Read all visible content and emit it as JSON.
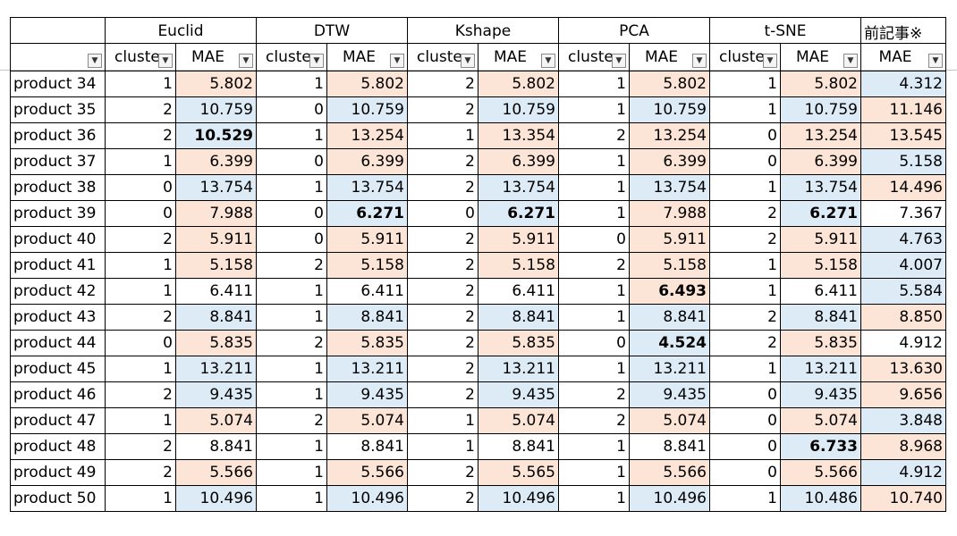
{
  "groups": [
    "Euclid",
    "DTW",
    "Kshape",
    "PCA",
    "t-SNE",
    "前記事※"
  ],
  "subheaders": {
    "cluster": "cluste",
    "mae": "MAE"
  },
  "rows": [
    {
      "name": "product 34",
      "cols": [
        [
          1,
          "5.802",
          "p",
          false
        ],
        [
          1,
          "5.802",
          "p",
          false
        ],
        [
          2,
          "5.802",
          "p",
          false
        ],
        [
          1,
          "5.802",
          "p",
          false
        ],
        [
          1,
          "5.802",
          "p",
          false
        ]
      ],
      "prev": [
        "4.312",
        "b"
      ]
    },
    {
      "name": "product 35",
      "cols": [
        [
          2,
          "10.759",
          "b",
          false
        ],
        [
          0,
          "10.759",
          "b",
          false
        ],
        [
          2,
          "10.759",
          "b",
          false
        ],
        [
          1,
          "10.759",
          "b",
          false
        ],
        [
          1,
          "10.759",
          "b",
          false
        ]
      ],
      "prev": [
        "11.146",
        "p"
      ]
    },
    {
      "name": "product 36",
      "cols": [
        [
          2,
          "10.529",
          "b",
          true
        ],
        [
          1,
          "13.254",
          "p",
          false
        ],
        [
          1,
          "13.354",
          "p",
          false
        ],
        [
          2,
          "13.254",
          "p",
          false
        ],
        [
          0,
          "13.254",
          "p",
          false
        ]
      ],
      "prev": [
        "13.545",
        "p"
      ]
    },
    {
      "name": "product 37",
      "cols": [
        [
          1,
          "6.399",
          "p",
          false
        ],
        [
          0,
          "6.399",
          "p",
          false
        ],
        [
          2,
          "6.399",
          "p",
          false
        ],
        [
          1,
          "6.399",
          "p",
          false
        ],
        [
          0,
          "6.399",
          "p",
          false
        ]
      ],
      "prev": [
        "5.158",
        "b"
      ]
    },
    {
      "name": "product 38",
      "cols": [
        [
          0,
          "13.754",
          "b",
          false
        ],
        [
          1,
          "13.754",
          "b",
          false
        ],
        [
          2,
          "13.754",
          "b",
          false
        ],
        [
          1,
          "13.754",
          "b",
          false
        ],
        [
          1,
          "13.754",
          "b",
          false
        ]
      ],
      "prev": [
        "14.496",
        "p"
      ]
    },
    {
      "name": "product 39",
      "cols": [
        [
          0,
          "7.988",
          "p",
          false
        ],
        [
          0,
          "6.271",
          "b",
          true
        ],
        [
          0,
          "6.271",
          "b",
          true
        ],
        [
          1,
          "7.988",
          "p",
          false
        ],
        [
          2,
          "6.271",
          "b",
          true
        ]
      ],
      "prev": [
        "7.367",
        "w"
      ]
    },
    {
      "name": "product 40",
      "cols": [
        [
          2,
          "5.911",
          "p",
          false
        ],
        [
          0,
          "5.911",
          "p",
          false
        ],
        [
          2,
          "5.911",
          "p",
          false
        ],
        [
          0,
          "5.911",
          "p",
          false
        ],
        [
          2,
          "5.911",
          "p",
          false
        ]
      ],
      "prev": [
        "4.763",
        "b"
      ]
    },
    {
      "name": "product 41",
      "cols": [
        [
          1,
          "5.158",
          "p",
          false
        ],
        [
          2,
          "5.158",
          "p",
          false
        ],
        [
          2,
          "5.158",
          "p",
          false
        ],
        [
          2,
          "5.158",
          "p",
          false
        ],
        [
          1,
          "5.158",
          "p",
          false
        ]
      ],
      "prev": [
        "4.007",
        "b"
      ]
    },
    {
      "name": "product 42",
      "cols": [
        [
          1,
          "6.411",
          "w",
          false
        ],
        [
          1,
          "6.411",
          "w",
          false
        ],
        [
          2,
          "6.411",
          "w",
          false
        ],
        [
          1,
          "6.493",
          "p",
          true
        ],
        [
          1,
          "6.411",
          "w",
          false
        ]
      ],
      "prev": [
        "5.584",
        "b"
      ]
    },
    {
      "name": "product 43",
      "cols": [
        [
          2,
          "8.841",
          "b",
          false
        ],
        [
          1,
          "8.841",
          "b",
          false
        ],
        [
          2,
          "8.841",
          "b",
          false
        ],
        [
          1,
          "8.841",
          "b",
          false
        ],
        [
          2,
          "8.841",
          "b",
          false
        ]
      ],
      "prev": [
        "8.850",
        "p"
      ]
    },
    {
      "name": "product 44",
      "cols": [
        [
          0,
          "5.835",
          "p",
          false
        ],
        [
          2,
          "5.835",
          "p",
          false
        ],
        [
          2,
          "5.835",
          "p",
          false
        ],
        [
          0,
          "4.524",
          "b",
          true
        ],
        [
          2,
          "5.835",
          "p",
          false
        ]
      ],
      "prev": [
        "4.912",
        "w"
      ]
    },
    {
      "name": "product 45",
      "cols": [
        [
          1,
          "13.211",
          "b",
          false
        ],
        [
          1,
          "13.211",
          "b",
          false
        ],
        [
          2,
          "13.211",
          "b",
          false
        ],
        [
          1,
          "13.211",
          "b",
          false
        ],
        [
          1,
          "13.211",
          "b",
          false
        ]
      ],
      "prev": [
        "13.630",
        "p"
      ]
    },
    {
      "name": "product 46",
      "cols": [
        [
          2,
          "9.435",
          "b",
          false
        ],
        [
          1,
          "9.435",
          "b",
          false
        ],
        [
          2,
          "9.435",
          "b",
          false
        ],
        [
          2,
          "9.435",
          "b",
          false
        ],
        [
          0,
          "9.435",
          "b",
          false
        ]
      ],
      "prev": [
        "9.656",
        "p"
      ]
    },
    {
      "name": "product 47",
      "cols": [
        [
          1,
          "5.074",
          "p",
          false
        ],
        [
          2,
          "5.074",
          "p",
          false
        ],
        [
          1,
          "5.074",
          "p",
          false
        ],
        [
          2,
          "5.074",
          "p",
          false
        ],
        [
          0,
          "5.074",
          "p",
          false
        ]
      ],
      "prev": [
        "3.848",
        "b"
      ]
    },
    {
      "name": "product 48",
      "cols": [
        [
          2,
          "8.841",
          "w",
          false
        ],
        [
          1,
          "8.841",
          "w",
          false
        ],
        [
          1,
          "8.841",
          "w",
          false
        ],
        [
          1,
          "8.841",
          "w",
          false
        ],
        [
          0,
          "6.733",
          "b",
          true
        ]
      ],
      "prev": [
        "8.968",
        "p"
      ]
    },
    {
      "name": "product 49",
      "cols": [
        [
          2,
          "5.566",
          "p",
          false
        ],
        [
          1,
          "5.566",
          "p",
          false
        ],
        [
          2,
          "5.565",
          "p",
          false
        ],
        [
          1,
          "5.566",
          "p",
          false
        ],
        [
          0,
          "5.566",
          "p",
          false
        ]
      ],
      "prev": [
        "4.912",
        "b"
      ]
    },
    {
      "name": "product 50",
      "cols": [
        [
          1,
          "10.496",
          "b",
          false
        ],
        [
          1,
          "10.496",
          "b",
          false
        ],
        [
          2,
          "10.496",
          "b",
          false
        ],
        [
          1,
          "10.496",
          "b",
          false
        ],
        [
          1,
          "10.486",
          "b",
          false
        ]
      ],
      "prev": [
        "10.740",
        "p"
      ]
    }
  ],
  "colors": {
    "blue": "#ddebf7",
    "peach": "#fce4d6",
    "white": "#ffffff",
    "border": "#000000"
  },
  "icons": {
    "filter": "dropdown-filter-icon"
  }
}
